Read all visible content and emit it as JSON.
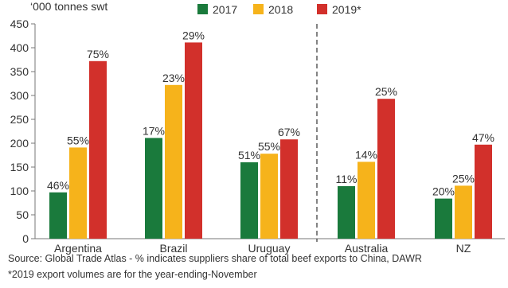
{
  "chart_data": {
    "type": "bar",
    "unit_label": "‘000 tonnes swt",
    "categories": [
      "Argentina",
      "Brazil",
      "Uruguay",
      "Australia",
      "NZ"
    ],
    "ylim": [
      0,
      450
    ],
    "yticks": [
      0,
      50,
      100,
      150,
      200,
      250,
      300,
      350,
      400,
      450
    ],
    "grid": false,
    "legend_position": "top",
    "divider_after_category": "Uruguay",
    "series": [
      {
        "name": "2017",
        "color": "#1a7a3c",
        "values": [
          97,
          211,
          160,
          110,
          84
        ],
        "labels": [
          "46%",
          "17%",
          "51%",
          "11%",
          "20%"
        ]
      },
      {
        "name": "2018",
        "color": "#f6b31b",
        "values": [
          191,
          322,
          178,
          161,
          111
        ],
        "labels": [
          "55%",
          "23%",
          "55%",
          "14%",
          "25%"
        ]
      },
      {
        "name": "2019*",
        "color": "#d2302b",
        "values": [
          372,
          411,
          208,
          293,
          197
        ],
        "labels": [
          "75%",
          "29%",
          "67%",
          "25%",
          "47%"
        ]
      }
    ]
  },
  "source_note": "Source: Global Trade Atlas - % indicates suppliers share of total beef exports to China, DAWR",
  "footnote": "*2019 export volumes are for the year-ending-November"
}
